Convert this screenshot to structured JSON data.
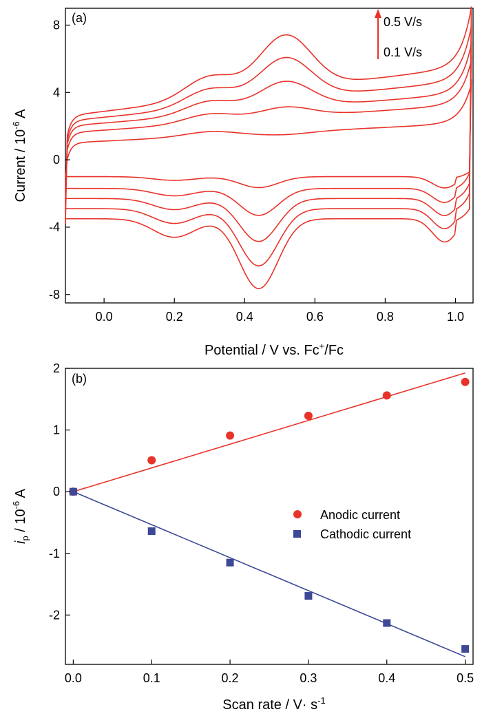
{
  "chart_data": [
    {
      "type": "line",
      "panel_label": "(a)",
      "xlabel": "Potential / V vs. Fc",
      "xlabel_sup": "+",
      "xlabel_tail": "/Fc",
      "ylabel": "Current / 10",
      "ylabel_sup": "-6",
      "ylabel_tail": " A",
      "xlim": [
        -0.11,
        1.05
      ],
      "ylim": [
        -8.5,
        9
      ],
      "xticks": [
        "0.0",
        "0.2",
        "0.4",
        "0.6",
        "0.8",
        "1.0"
      ],
      "xtick_values": [
        0.0,
        0.2,
        0.4,
        0.6,
        0.8,
        1.0
      ],
      "yticks": [
        "-8",
        "-4",
        "0",
        "4",
        "8"
      ],
      "ytick_values": [
        -8,
        -4,
        0,
        4,
        8
      ],
      "grid": false,
      "color": "#e8332a",
      "annotation_top": "0.5 V/s",
      "annotation_bottom": "0.1 V/s",
      "series": [
        {
          "scan_rate": 0.1,
          "anodic_base": 1.0,
          "anodic_peak": 1.85,
          "anodic_end": 2.8,
          "cathodic_base": -1.0,
          "cathodic_peak": -1.65,
          "cathodic_end": -0.9
        },
        {
          "scan_rate": 0.2,
          "anodic_base": 1.6,
          "anodic_peak": 3.65,
          "anodic_end": 4.2,
          "cathodic_base": -1.7,
          "cathodic_peak": -3.3,
          "cathodic_end": -1.4
        },
        {
          "scan_rate": 0.3,
          "anodic_base": 2.0,
          "anodic_peak": 5.25,
          "anodic_end": 5.0,
          "cathodic_base": -2.3,
          "cathodic_peak": -4.85,
          "cathodic_end": -2.0
        },
        {
          "scan_rate": 0.4,
          "anodic_base": 2.3,
          "anodic_peak": 6.8,
          "anodic_end": 6.0,
          "cathodic_base": -2.9,
          "cathodic_peak": -6.3,
          "cathodic_end": -2.6
        },
        {
          "scan_rate": 0.5,
          "anodic_base": 2.6,
          "anodic_peak": 8.3,
          "anodic_end": 7.1,
          "cathodic_base": -3.5,
          "cathodic_peak": -7.65,
          "cathodic_end": -3.3
        }
      ]
    },
    {
      "type": "scatter",
      "panel_label": "(b)",
      "xlabel": "Scan rate / V· s",
      "xlabel_sup": "-1",
      "ylabel_italic": "i",
      "ylabel_sub": "p",
      "ylabel": " / 10",
      "ylabel_sup": "-6",
      "ylabel_tail": " A",
      "xlim": [
        -0.01,
        0.51
      ],
      "ylim": [
        -2.8,
        2.0
      ],
      "xticks": [
        "0.0",
        "0.1",
        "0.2",
        "0.3",
        "0.4",
        "0.5"
      ],
      "xtick_values": [
        0.0,
        0.1,
        0.2,
        0.3,
        0.4,
        0.5
      ],
      "yticks": [
        "-2",
        "-1",
        "0",
        "1",
        "2"
      ],
      "ytick_values": [
        -2,
        -1,
        0,
        1,
        2
      ],
      "grid": false,
      "legend_position": "center-right",
      "series": [
        {
          "name": "Anodic current",
          "marker": "circle",
          "color": "#e8332a",
          "x": [
            0.0,
            0.1,
            0.2,
            0.3,
            0.4,
            0.5
          ],
          "y": [
            0.0,
            0.51,
            0.91,
            1.23,
            1.56,
            1.78
          ],
          "fit_slope": 3.85
        },
        {
          "name": "Cathodic current",
          "marker": "square",
          "color": "#3d4896",
          "x": [
            0.0,
            0.1,
            0.2,
            0.3,
            0.4,
            0.5
          ],
          "y": [
            0.0,
            -0.64,
            -1.15,
            -1.69,
            -2.13,
            -2.55
          ],
          "fit_slope": -5.35
        }
      ]
    }
  ]
}
